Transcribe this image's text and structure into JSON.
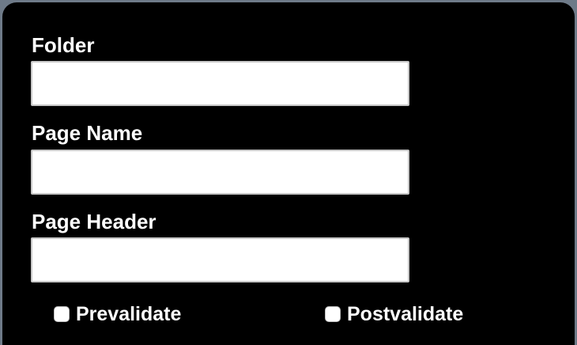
{
  "form": {
    "folder": {
      "label": "Folder",
      "value": ""
    },
    "page_name": {
      "label": "Page Name",
      "value": ""
    },
    "page_header": {
      "label": "Page Header",
      "value": ""
    },
    "prevalidate": {
      "label": "Prevalidate",
      "checked": false
    },
    "postvalidate": {
      "label": "Postvalidate",
      "checked": false
    }
  }
}
